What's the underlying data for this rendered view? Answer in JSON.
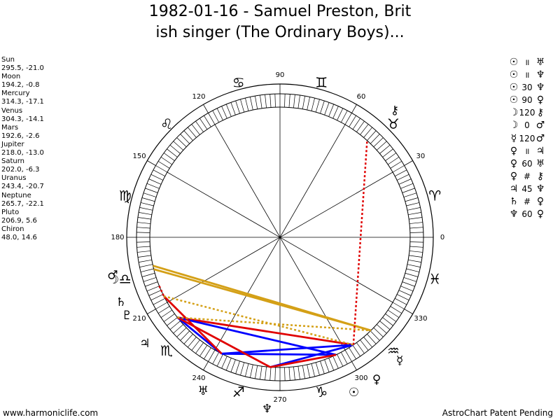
{
  "title": {
    "line1": "1982-01-16 - Samuel Preston, Brit",
    "line2": "ish singer (The Ordinary Boys)..."
  },
  "planets": [
    {
      "name": "Sun",
      "values": "295.5, -21.0",
      "glyph": "☉",
      "color": "#000000"
    },
    {
      "name": "Moon",
      "values": "194.2, -0.8",
      "glyph": "☽",
      "color": "#000000"
    },
    {
      "name": "Mercury",
      "values": "314.3, -17.1",
      "glyph": "☿",
      "color": "#000000"
    },
    {
      "name": "Venus",
      "values": "304.3, -14.1",
      "glyph": "♀",
      "color": "#000000"
    },
    {
      "name": "Mars",
      "values": "192.6, -2.6",
      "glyph": "♂",
      "color": "#000000"
    },
    {
      "name": "Jupiter",
      "values": "218.0, -13.0",
      "glyph": "♃",
      "color": "#000000"
    },
    {
      "name": "Saturn",
      "values": "202.0, -6.3",
      "glyph": "♄",
      "color": "#000000"
    },
    {
      "name": "Uranus",
      "values": "243.4, -20.7",
      "glyph": "♅",
      "color": "#000000"
    },
    {
      "name": "Neptune",
      "values": "265.7, -22.1",
      "glyph": "♆",
      "color": "#000000"
    },
    {
      "name": "Pluto",
      "values": "206.9, 5.6",
      "glyph": "♇",
      "color": "#000000"
    },
    {
      "name": "Chiron",
      "values": "48.0, 14.6",
      "glyph": "⚷",
      "color": "#000000"
    }
  ],
  "aspects_list": [
    {
      "a": "☉",
      "sym": "॥",
      "b": "♅"
    },
    {
      "a": "☉",
      "sym": "॥",
      "b": "♆"
    },
    {
      "a": "☉",
      "sym": "30",
      "b": "♆"
    },
    {
      "a": "☉",
      "sym": "90",
      "b": "♀"
    },
    {
      "a": "☽",
      "sym": "120",
      "b": "⚷"
    },
    {
      "a": "☽",
      "sym": "0",
      "b": "♂"
    },
    {
      "a": "☿",
      "sym": "120",
      "b": "♂"
    },
    {
      "a": "♀",
      "sym": "॥",
      "b": "♃"
    },
    {
      "a": "♀",
      "sym": "60",
      "b": "♅"
    },
    {
      "a": "♀",
      "sym": "#",
      "b": "⚷"
    },
    {
      "a": "♃",
      "sym": "45",
      "b": "♆"
    },
    {
      "a": "♄",
      "sym": "#",
      "b": "♀"
    },
    {
      "a": "♆",
      "sym": "60",
      "b": "♀"
    }
  ],
  "chart_data": {
    "type": "astrological-wheel",
    "degree_labels": [
      "0",
      "30",
      "60",
      "90",
      "120",
      "150",
      "180",
      "210",
      "240",
      "270",
      "300",
      "330"
    ],
    "zodiac": [
      {
        "sign": "Aries",
        "glyph": "♈",
        "start": 0
      },
      {
        "sign": "Taurus",
        "glyph": "♉",
        "start": 30
      },
      {
        "sign": "Gemini",
        "glyph": "♊",
        "start": 60
      },
      {
        "sign": "Cancer",
        "glyph": "♋",
        "start": 90
      },
      {
        "sign": "Leo",
        "glyph": "♌",
        "start": 120
      },
      {
        "sign": "Virgo",
        "glyph": "♍",
        "start": 150
      },
      {
        "sign": "Libra",
        "glyph": "♎",
        "start": 180
      },
      {
        "sign": "Scorpio",
        "glyph": "♏",
        "start": 210
      },
      {
        "sign": "Sagittarius",
        "glyph": "♐",
        "start": 240
      },
      {
        "sign": "Capricorn",
        "glyph": "♑",
        "start": 270
      },
      {
        "sign": "Aquarius",
        "glyph": "♒",
        "start": 300
      },
      {
        "sign": "Pisces",
        "glyph": "♓",
        "start": 330
      }
    ],
    "bodies": [
      {
        "name": "Sun",
        "lon": 295.5
      },
      {
        "name": "Moon",
        "lon": 194.2
      },
      {
        "name": "Mercury",
        "lon": 314.3
      },
      {
        "name": "Venus",
        "lon": 304.3
      },
      {
        "name": "Mars",
        "lon": 192.6
      },
      {
        "name": "Jupiter",
        "lon": 218.0
      },
      {
        "name": "Saturn",
        "lon": 202.0
      },
      {
        "name": "Uranus",
        "lon": 243.4
      },
      {
        "name": "Neptune",
        "lon": 265.7
      },
      {
        "name": "Pluto",
        "lon": 206.9
      },
      {
        "name": "Chiron",
        "lon": 48.0
      }
    ],
    "aspect_lines": [
      {
        "from": "Moon",
        "to": "Mercury",
        "color": "#d4a017",
        "style": "solid"
      },
      {
        "from": "Mars",
        "to": "Mercury",
        "color": "#d4a017",
        "style": "solid"
      },
      {
        "from": "Jupiter",
        "to": "Venus",
        "color": "#e00000",
        "style": "solid"
      },
      {
        "from": "Jupiter",
        "to": "Sun",
        "color": "#0000ff",
        "style": "solid"
      },
      {
        "from": "Jupiter",
        "to": "Uranus",
        "color": "#0000ff",
        "style": "solid"
      },
      {
        "from": "Uranus",
        "to": "Sun",
        "color": "#0000ff",
        "style": "solid"
      },
      {
        "from": "Neptune",
        "to": "Venus",
        "color": "#0000ff",
        "style": "solid"
      },
      {
        "from": "Uranus",
        "to": "Venus",
        "color": "#0000ff",
        "style": "solid"
      },
      {
        "from": "Jupiter",
        "to": "Neptune",
        "color": "#e00000",
        "style": "solid"
      },
      {
        "from": "Neptune",
        "to": "Sun",
        "color": "#e00000",
        "style": "solid"
      },
      {
        "from": "Uranus",
        "to": "Pluto",
        "color": "#e00000",
        "style": "solid"
      },
      {
        "from": "Venus",
        "to": "Chiron",
        "color": "#e00000",
        "style": "dotted"
      },
      {
        "from": "Jupiter",
        "to": "Mercury",
        "color": "#d4a017",
        "style": "dotted"
      },
      {
        "from": "Pluto",
        "to": "Venus",
        "color": "#d4a017",
        "style": "dotted"
      },
      {
        "from": "Saturn",
        "to": "Pluto",
        "color": "#e00000",
        "style": "dotted"
      }
    ]
  },
  "footer": {
    "left": "www.harmoniclife.com",
    "right": "AstroChart Patent Pending"
  }
}
